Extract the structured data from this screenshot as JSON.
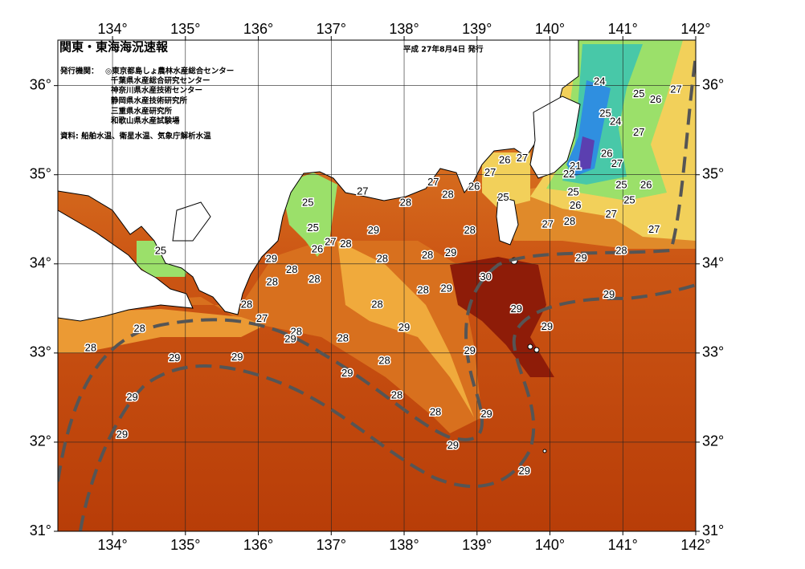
{
  "header": {
    "title": "関東・東海海況速報",
    "date": "平成 27年8月4日 発行"
  },
  "issuer": {
    "heading": "発行機関：",
    "organizations": [
      "◎東京都島しょ農林水産総合センター",
      "千葉県水産総合研究センター",
      "神奈川県水産技術センター",
      "静岡県水産技術研究所",
      "三重県水産研究所",
      "和歌山県水産試験場"
    ]
  },
  "source": "資料: 船舶水温、衛星水温、気象庁解析水温",
  "map": {
    "xlim": [
      133.25,
      142
    ],
    "ylim": [
      31,
      36.51
    ],
    "xticks": [
      {
        "value": 134,
        "label": "134°"
      },
      {
        "value": 135,
        "label": "135°"
      },
      {
        "value": 136,
        "label": "136°"
      },
      {
        "value": 137,
        "label": "137°"
      },
      {
        "value": 138,
        "label": "138°"
      },
      {
        "value": 139,
        "label": "139°"
      },
      {
        "value": 140,
        "label": "140°"
      },
      {
        "value": 141,
        "label": "141°"
      },
      {
        "value": 142,
        "label": "142°"
      }
    ],
    "yticks": [
      {
        "value": 31,
        "label": "31°"
      },
      {
        "value": 32,
        "label": "32°"
      },
      {
        "value": 33,
        "label": "33°"
      },
      {
        "value": 34,
        "label": "34°"
      },
      {
        "value": 35,
        "label": "35°"
      },
      {
        "value": 36,
        "label": "36°"
      }
    ],
    "contour_labels": [
      {
        "lon": 140.68,
        "lat": 36.04,
        "value": 24
      },
      {
        "lon": 141.22,
        "lat": 35.9,
        "value": 25
      },
      {
        "lon": 141.45,
        "lat": 35.84,
        "value": 26
      },
      {
        "lon": 141.73,
        "lat": 35.95,
        "value": 27
      },
      {
        "lon": 140.76,
        "lat": 35.68,
        "value": 25
      },
      {
        "lon": 140.9,
        "lat": 35.59,
        "value": 24
      },
      {
        "lon": 141.22,
        "lat": 35.47,
        "value": 27
      },
      {
        "lon": 140.78,
        "lat": 35.23,
        "value": 26
      },
      {
        "lon": 140.92,
        "lat": 35.12,
        "value": 27
      },
      {
        "lon": 140.35,
        "lat": 35.09,
        "value": 21
      },
      {
        "lon": 140.26,
        "lat": 35.0,
        "value": 22
      },
      {
        "lon": 140.32,
        "lat": 34.8,
        "value": 25
      },
      {
        "lon": 140.98,
        "lat": 34.88,
        "value": 25
      },
      {
        "lon": 141.32,
        "lat": 34.88,
        "value": 26
      },
      {
        "lon": 141.09,
        "lat": 34.71,
        "value": 25
      },
      {
        "lon": 140.35,
        "lat": 34.65,
        "value": 26
      },
      {
        "lon": 140.84,
        "lat": 34.55,
        "value": 27
      },
      {
        "lon": 141.43,
        "lat": 34.38,
        "value": 27
      },
      {
        "lon": 139.97,
        "lat": 34.44,
        "value": 27
      },
      {
        "lon": 140.27,
        "lat": 34.47,
        "value": 28
      },
      {
        "lon": 140.98,
        "lat": 34.14,
        "value": 28
      },
      {
        "lon": 140.43,
        "lat": 34.06,
        "value": 29
      },
      {
        "lon": 140.81,
        "lat": 33.65,
        "value": 29
      },
      {
        "lon": 139.38,
        "lat": 35.16,
        "value": 26
      },
      {
        "lon": 139.62,
        "lat": 35.18,
        "value": 27
      },
      {
        "lon": 139.18,
        "lat": 35.02,
        "value": 27
      },
      {
        "lon": 138.96,
        "lat": 34.86,
        "value": 26
      },
      {
        "lon": 139.36,
        "lat": 34.74,
        "value": 25
      },
      {
        "lon": 138.4,
        "lat": 34.91,
        "value": 27
      },
      {
        "lon": 138.6,
        "lat": 34.77,
        "value": 28
      },
      {
        "lon": 138.02,
        "lat": 34.68,
        "value": 28
      },
      {
        "lon": 137.43,
        "lat": 34.81,
        "value": 27
      },
      {
        "lon": 136.68,
        "lat": 34.68,
        "value": 25
      },
      {
        "lon": 136.75,
        "lat": 34.4,
        "value": 25
      },
      {
        "lon": 136.81,
        "lat": 34.16,
        "value": 26
      },
      {
        "lon": 136.99,
        "lat": 34.24,
        "value": 27
      },
      {
        "lon": 137.2,
        "lat": 34.22,
        "value": 28
      },
      {
        "lon": 137.58,
        "lat": 34.37,
        "value": 29
      },
      {
        "lon": 136.18,
        "lat": 34.05,
        "value": 29
      },
      {
        "lon": 136.46,
        "lat": 33.93,
        "value": 28
      },
      {
        "lon": 136.19,
        "lat": 33.79,
        "value": 28
      },
      {
        "lon": 136.77,
        "lat": 33.82,
        "value": 28
      },
      {
        "lon": 137.7,
        "lat": 34.05,
        "value": 28
      },
      {
        "lon": 138.32,
        "lat": 34.09,
        "value": 28
      },
      {
        "lon": 138.64,
        "lat": 34.12,
        "value": 29
      },
      {
        "lon": 138.9,
        "lat": 34.37,
        "value": 28
      },
      {
        "lon": 139.12,
        "lat": 33.85,
        "value": 30
      },
      {
        "lon": 138.58,
        "lat": 33.72,
        "value": 29
      },
      {
        "lon": 138.26,
        "lat": 33.7,
        "value": 28
      },
      {
        "lon": 137.63,
        "lat": 33.54,
        "value": 28
      },
      {
        "lon": 139.54,
        "lat": 33.49,
        "value": 29
      },
      {
        "lon": 139.96,
        "lat": 33.29,
        "value": 29
      },
      {
        "lon": 138.0,
        "lat": 33.28,
        "value": 29
      },
      {
        "lon": 137.16,
        "lat": 33.16,
        "value": 28
      },
      {
        "lon": 136.52,
        "lat": 33.23,
        "value": 28
      },
      {
        "lon": 136.44,
        "lat": 33.15,
        "value": 29
      },
      {
        "lon": 136.05,
        "lat": 33.38,
        "value": 27
      },
      {
        "lon": 135.84,
        "lat": 33.54,
        "value": 28
      },
      {
        "lon": 134.66,
        "lat": 34.14,
        "value": 25
      },
      {
        "lon": 134.37,
        "lat": 33.27,
        "value": 28
      },
      {
        "lon": 133.7,
        "lat": 33.05,
        "value": 28
      },
      {
        "lon": 134.85,
        "lat": 32.94,
        "value": 29
      },
      {
        "lon": 135.71,
        "lat": 32.95,
        "value": 29
      },
      {
        "lon": 137.22,
        "lat": 32.77,
        "value": 29
      },
      {
        "lon": 137.73,
        "lat": 32.91,
        "value": 28
      },
      {
        "lon": 138.9,
        "lat": 33.02,
        "value": 29
      },
      {
        "lon": 137.9,
        "lat": 32.52,
        "value": 28
      },
      {
        "lon": 138.43,
        "lat": 32.33,
        "value": 28
      },
      {
        "lon": 139.13,
        "lat": 32.31,
        "value": 29
      },
      {
        "lon": 138.67,
        "lat": 31.96,
        "value": 29
      },
      {
        "lon": 139.65,
        "lat": 31.67,
        "value": 29
      },
      {
        "lon": 134.27,
        "lat": 32.5,
        "value": 29
      },
      {
        "lon": 134.13,
        "lat": 32.08,
        "value": 29
      }
    ]
  }
}
